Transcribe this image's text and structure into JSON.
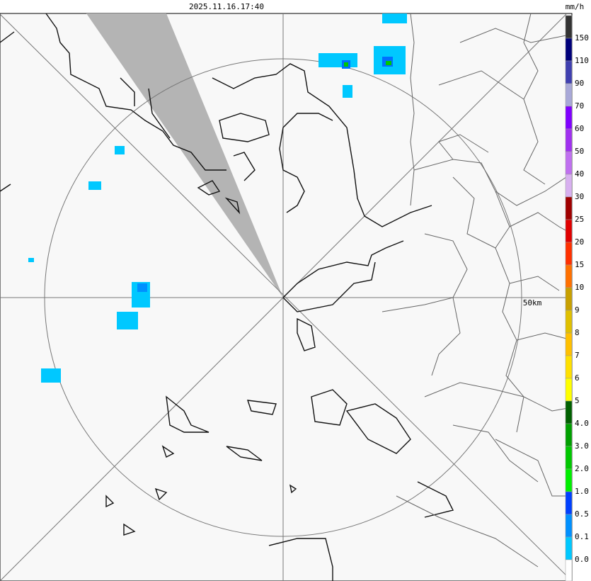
{
  "header": {
    "timestamp": "2025.11.16.17:40"
  },
  "map": {
    "range_label": "50km"
  },
  "legend": {
    "unit": "mm/h",
    "colors": [
      "#333333",
      "#00007a",
      "#4040b0",
      "#a8a8d8",
      "#8000ff",
      "#a030f0",
      "#c070f0",
      "#d8b0f0",
      "#a00000",
      "#e00000",
      "#ff3000",
      "#ff7000",
      "#c8a000",
      "#e0c000",
      "#ffc000",
      "#ffe000",
      "#ffff00",
      "#006000",
      "#00a000",
      "#00c800",
      "#00f000",
      "#0040ff",
      "#0090ff",
      "#00c8ff",
      "#ffffff"
    ],
    "labels": [
      "150",
      "110",
      "90",
      "70",
      "60",
      "50",
      "40",
      "30",
      "25",
      "20",
      "15",
      "10",
      "9",
      "8",
      "7",
      "6",
      "5",
      "4.0",
      "3.0",
      "2.0",
      "1.0",
      "0.5",
      "0.1",
      "0.0"
    ]
  }
}
